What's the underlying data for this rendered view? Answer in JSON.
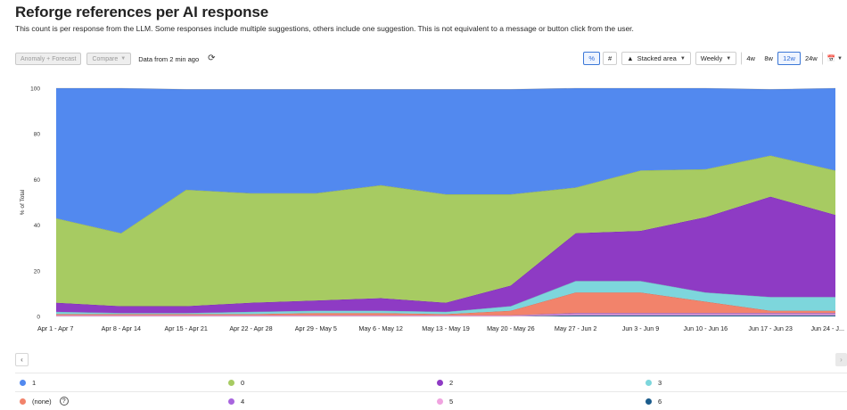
{
  "header": {
    "title": "Reforge references per AI response",
    "subtitle": "This count is per response from the LLM. Some responses include multiple suggestions, others include one suggestion. This is not equivalent to a message or button click from the user."
  },
  "toolbar": {
    "anomaly_label": "Anomaly + Forecast",
    "compare_label": "Compare",
    "freshness": "Data from 2 min ago",
    "percent_label": "%",
    "count_label": "#",
    "chart_type_label": "Stacked area",
    "interval_label": "Weekly",
    "ranges": [
      "4w",
      "8w",
      "12w",
      "24w"
    ],
    "active_range": "12w",
    "accent_color": "#3c78d8"
  },
  "chart_data": {
    "type": "area",
    "stacked": true,
    "normalized_percent": true,
    "ylabel": "% of Total",
    "ylim": [
      0,
      100
    ],
    "yticks": [
      0,
      20,
      40,
      60,
      80,
      100
    ],
    "grid": false,
    "categories": [
      "Apr 1 - Apr 7",
      "Apr 8 - Apr 14",
      "Apr 15 - Apr 21",
      "Apr 22 - Apr 28",
      "Apr 29 - May 5",
      "May 6 - May 12",
      "May 13 - May 19",
      "May 20 - May 26",
      "May 27 - Jun 2",
      "Jun 3 - Jun 9",
      "Jun 10 - Jun 16",
      "Jun 17 - Jun 23",
      "Jun 24 - J..."
    ],
    "series": [
      {
        "name": "6",
        "color": "#1b5c8c",
        "values": [
          0,
          0,
          0,
          0,
          0,
          0,
          0,
          0,
          0.5,
          0.5,
          0.5,
          0.5,
          0.5
        ]
      },
      {
        "name": "5",
        "color": "#f0a3e0",
        "values": [
          0.5,
          0.5,
          0.5,
          0.5,
          0.5,
          0.5,
          0.5,
          0.5,
          0.5,
          0.5,
          0.5,
          0.5,
          0.5
        ]
      },
      {
        "name": "4",
        "color": "#a865de",
        "values": [
          0,
          0,
          0,
          0,
          0,
          0,
          0,
          0,
          0.5,
          0.5,
          0.5,
          0.5,
          0.5
        ]
      },
      {
        "name": "(none)",
        "color": "#f2836b",
        "values": [
          0.5,
          0.5,
          0.5,
          0.5,
          1,
          1,
          0.5,
          2,
          9,
          9,
          5,
          1,
          1
        ]
      },
      {
        "name": "3",
        "color": "#7dd6dc",
        "values": [
          1,
          0.5,
          0.5,
          1,
          1,
          1,
          1,
          2,
          5,
          5,
          4,
          6,
          6
        ]
      },
      {
        "name": "2",
        "color": "#8e3bc4",
        "values": [
          4,
          3,
          3,
          4,
          4.5,
          5.5,
          4,
          9,
          21,
          22,
          33,
          44,
          36
        ]
      },
      {
        "name": "0",
        "color": "#a7cb62",
        "values": [
          37,
          32,
          51,
          48,
          47,
          49.5,
          47.5,
          40,
          20,
          26.5,
          21,
          18,
          19.5
        ]
      },
      {
        "name": "1",
        "color": "#5289ef",
        "values": [
          57,
          63.5,
          44,
          45.5,
          45.5,
          42,
          46,
          46,
          43.5,
          36,
          35.5,
          29,
          36
        ]
      }
    ]
  },
  "legend_order": [
    "1",
    "0",
    "2",
    "3",
    "(none)",
    "4",
    "5",
    "6"
  ],
  "nav": {
    "prev": "‹",
    "next": "›"
  }
}
